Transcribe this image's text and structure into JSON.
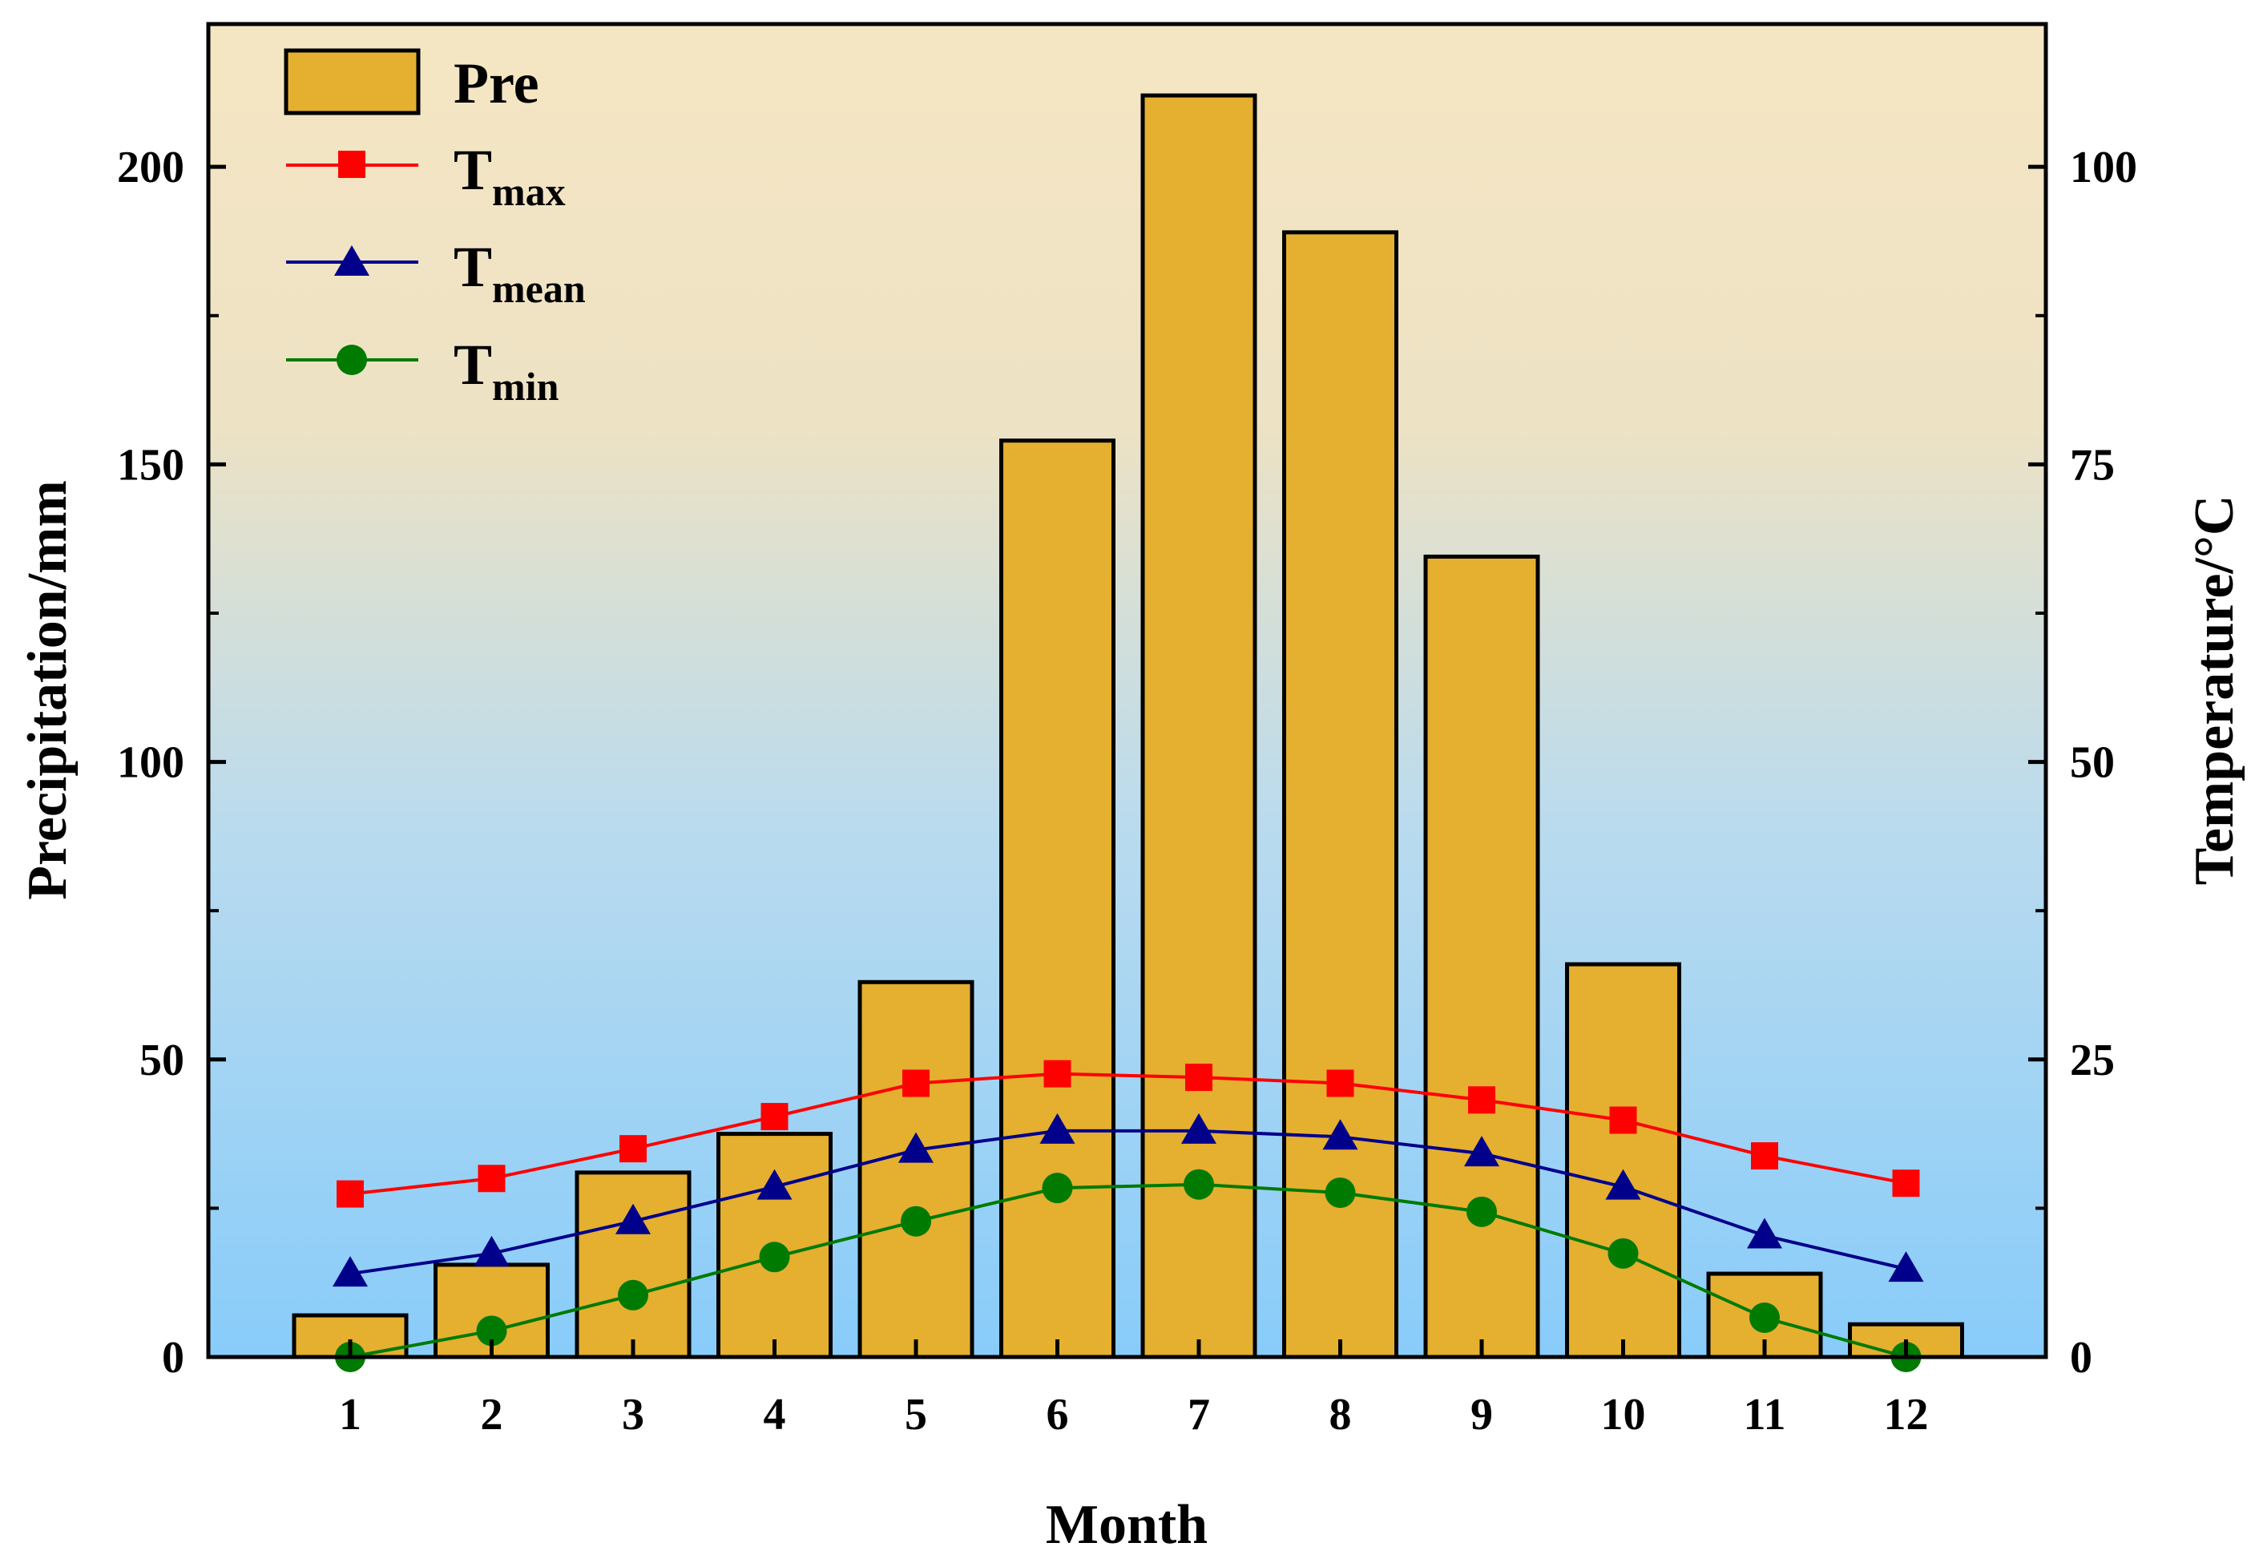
{
  "chart_data": {
    "type": "bar+line",
    "categories": [
      "1",
      "2",
      "3",
      "4",
      "5",
      "6",
      "7",
      "8",
      "9",
      "10",
      "11",
      "12"
    ],
    "xlabel": "Month",
    "ylabel_left": "Precipitation/mm",
    "ylabel_right": "Temperature/°C",
    "ylim_left": [
      0,
      224
    ],
    "ylim_right": [
      0,
      112
    ],
    "yticks_left": [
      0,
      50,
      100,
      150,
      200
    ],
    "yticks_right": [
      0,
      25,
      50,
      75,
      100
    ],
    "bar_series": {
      "name": "Pre",
      "axis": "left",
      "color": "#E5AF30",
      "values": [
        7,
        15.5,
        31,
        37.5,
        63,
        154,
        212,
        189,
        134.5,
        66,
        14,
        5.5
      ]
    },
    "line_series": [
      {
        "name": "T",
        "subscript": "max",
        "marker": "square",
        "color": "#FF0000",
        "axis": "right",
        "values": [
          13.7,
          15,
          17.5,
          20.2,
          23,
          23.8,
          23.5,
          23,
          21.6,
          19.9,
          16.9,
          14.6
        ]
      },
      {
        "name": "T",
        "subscript": "mean",
        "marker": "triangle",
        "color": "#00008B",
        "axis": "right",
        "values": [
          7,
          8.7,
          11.4,
          14.3,
          17.4,
          19,
          19,
          18.5,
          17.1,
          14.3,
          10.2,
          7.4
        ]
      },
      {
        "name": "T",
        "subscript": "min",
        "marker": "circle",
        "color": "#007A00",
        "axis": "right",
        "values": [
          0,
          2.2,
          5.2,
          8.4,
          11.4,
          14.2,
          14.5,
          13.8,
          12.2,
          8.7,
          3.3,
          0
        ]
      }
    ],
    "legend_position": "top-left",
    "background_gradient": {
      "top": "#F5E6C3",
      "bottom": "#88CCFA"
    }
  }
}
